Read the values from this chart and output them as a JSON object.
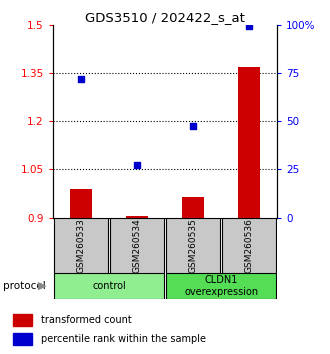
{
  "title": "GDS3510 / 202422_s_at",
  "samples": [
    "GSM260533",
    "GSM260534",
    "GSM260535",
    "GSM260536"
  ],
  "red_values": [
    0.99,
    0.905,
    0.965,
    1.37
  ],
  "blue_values": [
    1.33,
    1.065,
    1.185,
    1.495
  ],
  "ylim_left": [
    0.9,
    1.5
  ],
  "ylim_right": [
    0,
    100
  ],
  "yticks_left": [
    0.9,
    1.05,
    1.2,
    1.35,
    1.5
  ],
  "yticks_right": [
    0,
    25,
    50,
    75,
    100
  ],
  "ytick_labels_left": [
    "0.9",
    "1.05",
    "1.2",
    "1.35",
    "1.5"
  ],
  "ytick_labels_right": [
    "0",
    "25",
    "50",
    "75",
    "100%"
  ],
  "hlines": [
    1.05,
    1.2,
    1.35
  ],
  "groups": [
    {
      "label": "control",
      "samples": [
        0,
        1
      ],
      "color": "#90ee90"
    },
    {
      "label": "CLDN1\noverexpression",
      "samples": [
        2,
        3
      ],
      "color": "#55dd55"
    }
  ],
  "bar_color": "#cc0000",
  "dot_color": "#0000cc",
  "sample_box_color": "#c8c8c8",
  "legend_red": "transformed count",
  "legend_blue": "percentile rank within the sample",
  "protocol_label": "protocol"
}
